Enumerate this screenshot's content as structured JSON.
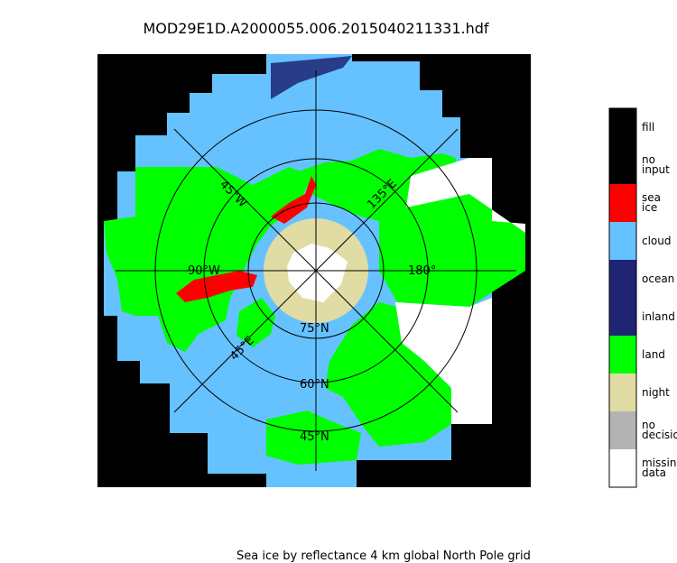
{
  "chart_data": {
    "type": "map",
    "title": "MOD29E1D.A2000055.006.2015040211331.hdf",
    "caption": "Sea ice by reflectance 4 km global North Pole grid",
    "projection": "north-polar-stereographic",
    "latitude_labels": [
      "75°N",
      "60°N",
      "45°N"
    ],
    "longitude_labels": [
      "90°W",
      "45°W",
      "135°E",
      "45°E",
      "180°"
    ],
    "legend": [
      {
        "label": "fill",
        "color": "#000000"
      },
      {
        "label": "no input",
        "color": "#000000"
      },
      {
        "label": "sea ice",
        "color": "#ff0000"
      },
      {
        "label": "cloud",
        "color": "#66c2ff"
      },
      {
        "label": "ocean",
        "color": "#1f2475"
      },
      {
        "label": "inland",
        "color": "#1f2475"
      },
      {
        "label": "land",
        "color": "#00ff00"
      },
      {
        "label": "night",
        "color": "#e0dca3"
      },
      {
        "label": "no decision",
        "color": "#b3b3b3"
      },
      {
        "label": "missing data",
        "color": "#ffffff"
      }
    ]
  }
}
